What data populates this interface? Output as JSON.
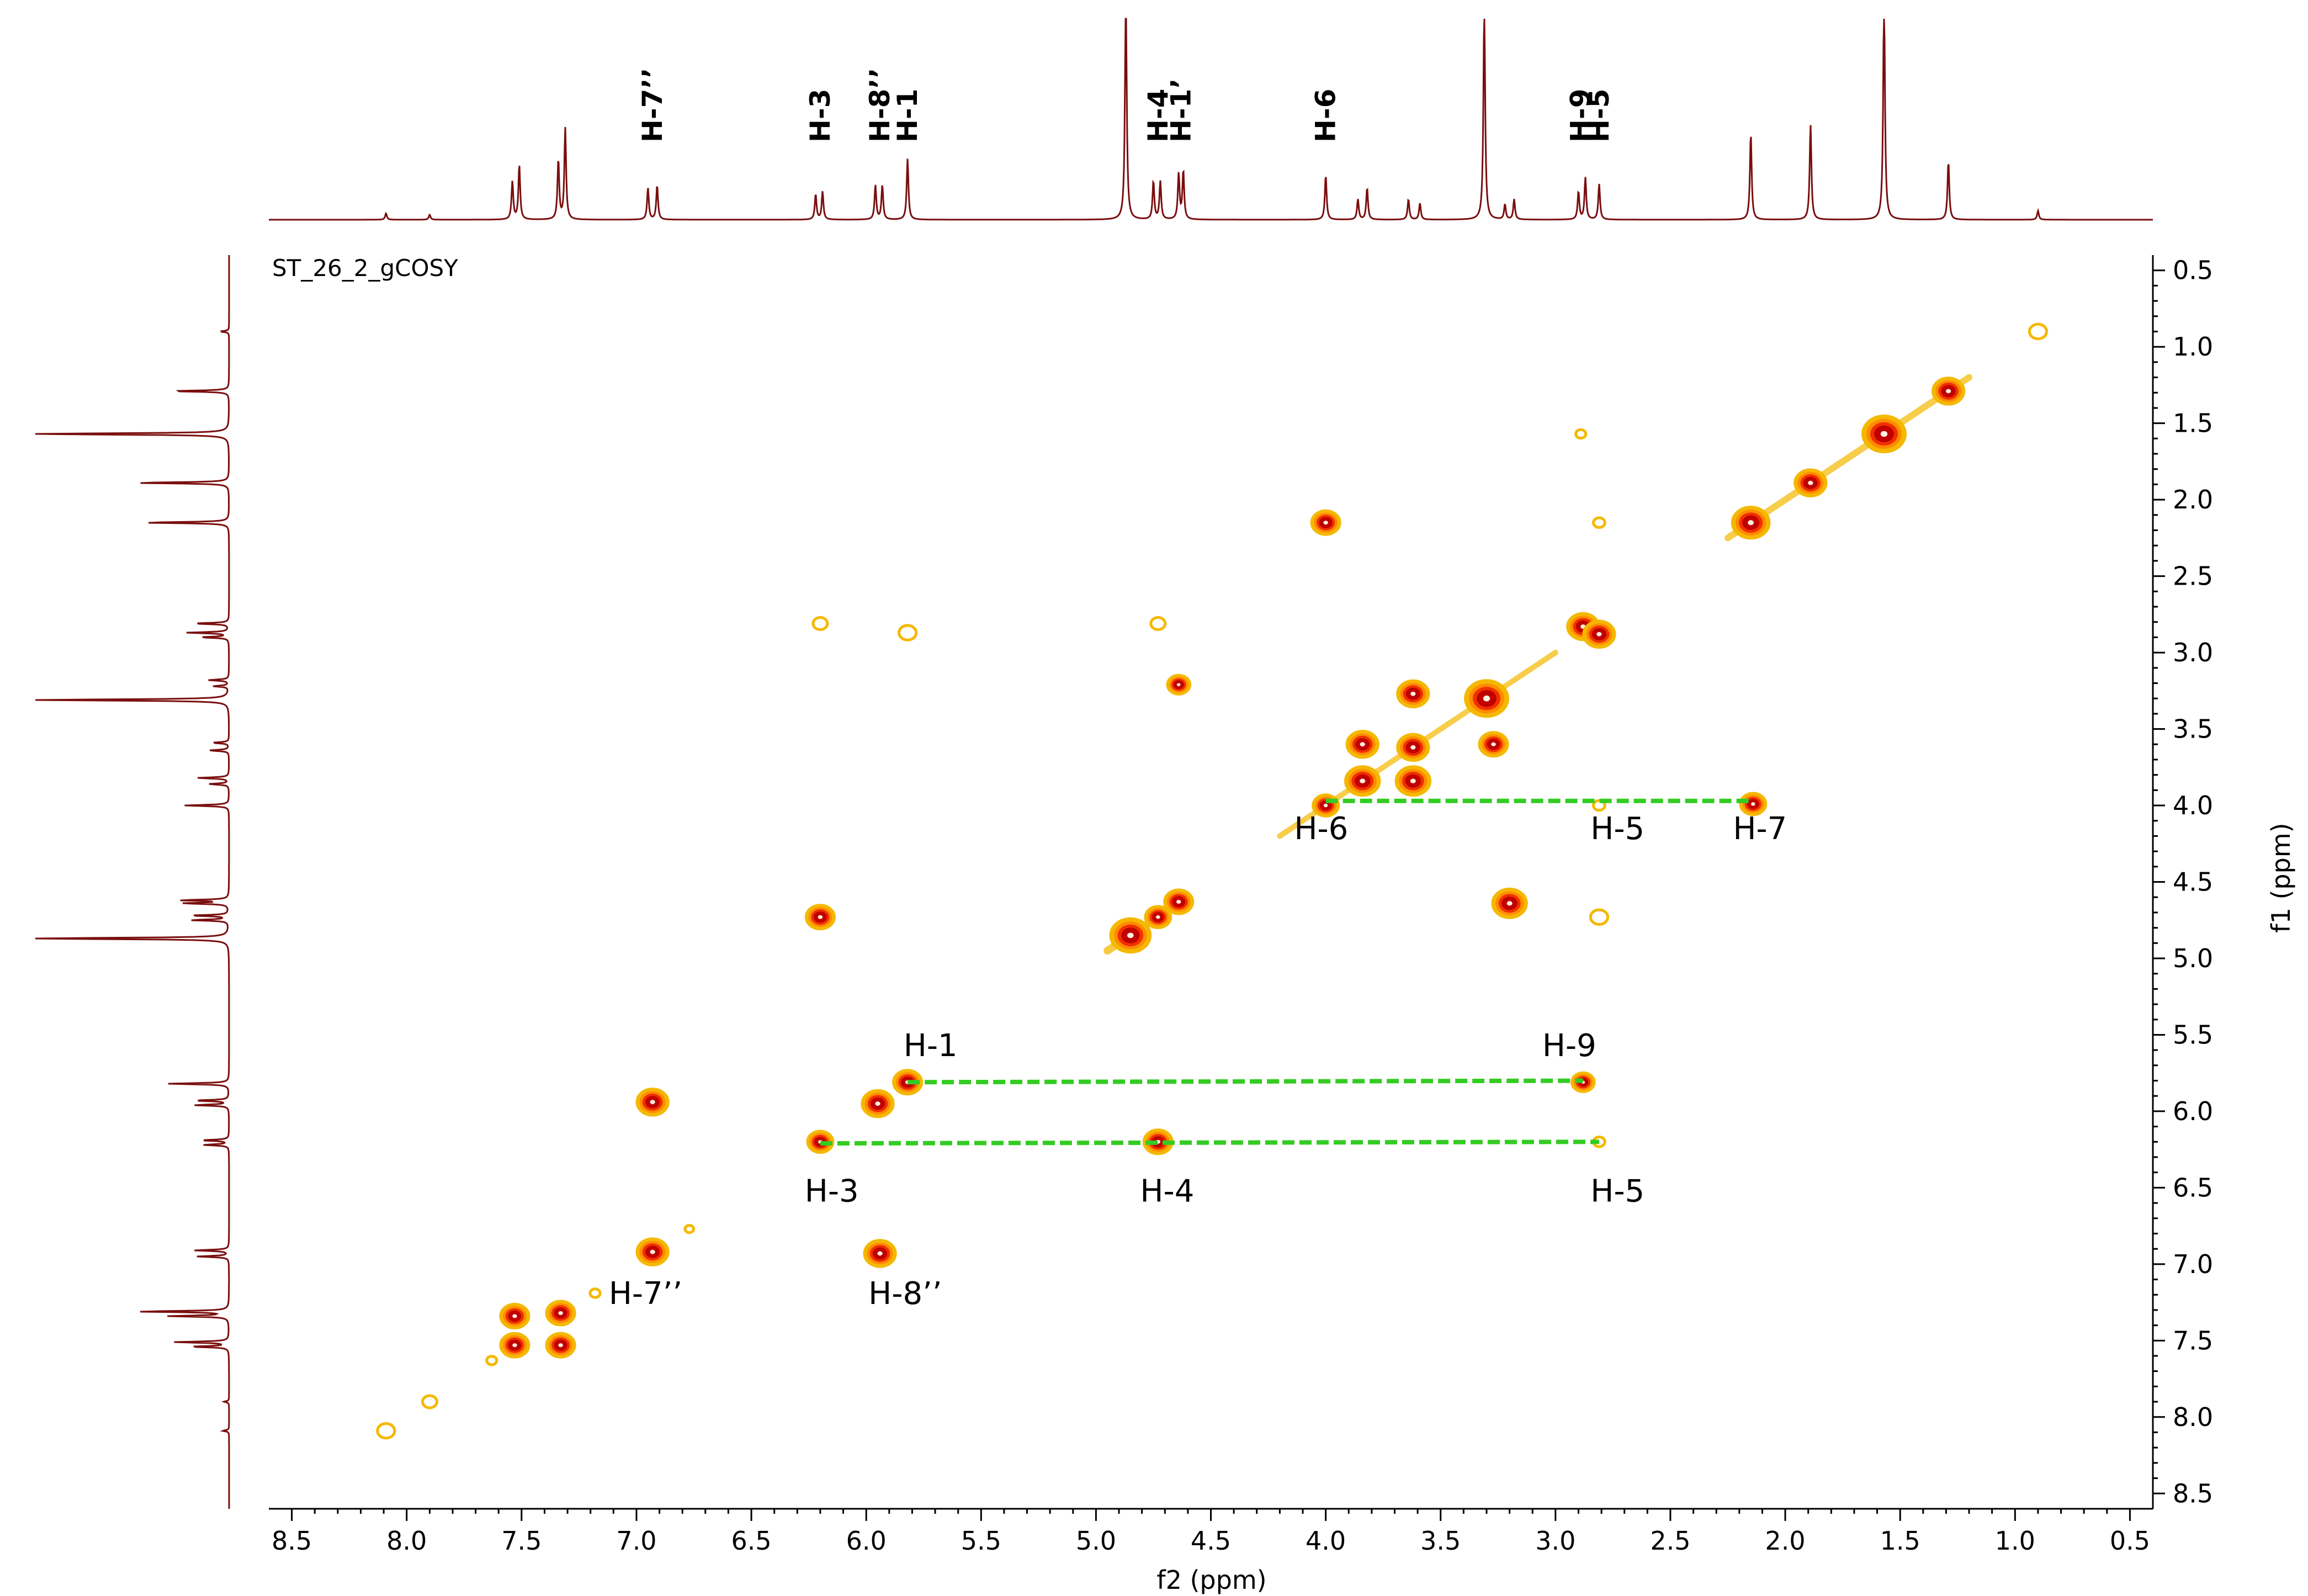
{
  "chart_data": {
    "type": "2D NMR contour (gCOSY)",
    "title": "ST_26_2_gCOSY",
    "xlabel": "f2 (ppm)",
    "ylabel": "f1 (ppm)",
    "xlim": [
      8.6,
      0.4
    ],
    "ylim": [
      0.4,
      8.6
    ],
    "x_ticks": [
      "8.5",
      "8.0",
      "7.5",
      "7.0",
      "6.5",
      "6.0",
      "5.5",
      "5.0",
      "4.5",
      "4.0",
      "3.5",
      "3.0",
      "2.5",
      "2.0",
      "1.5",
      "1.0",
      "0.5"
    ],
    "y_ticks": [
      "0.5",
      "1.0",
      "1.5",
      "2.0",
      "2.5",
      "3.0",
      "3.5",
      "4.0",
      "4.5",
      "5.0",
      "5.5",
      "6.0",
      "6.5",
      "7.0",
      "7.5",
      "8.0",
      "8.5"
    ],
    "spectrum_1d_peaks": [
      {
        "ppm": 8.09,
        "h": 0.05
      },
      {
        "ppm": 7.9,
        "h": 0.04
      },
      {
        "ppm": 7.54,
        "h": 0.3
      },
      {
        "ppm": 7.51,
        "h": 0.43
      },
      {
        "ppm": 7.34,
        "h": 0.47
      },
      {
        "ppm": 7.31,
        "h": 0.72
      },
      {
        "ppm": 6.95,
        "h": 0.25
      },
      {
        "ppm": 6.91,
        "h": 0.27
      },
      {
        "ppm": 6.22,
        "h": 0.2
      },
      {
        "ppm": 6.19,
        "h": 0.22
      },
      {
        "ppm": 5.96,
        "h": 0.27
      },
      {
        "ppm": 5.93,
        "h": 0.27
      },
      {
        "ppm": 5.82,
        "h": 0.48
      },
      {
        "ppm": 4.87,
        "h": 1.8
      },
      {
        "ppm": 4.75,
        "h": 0.3
      },
      {
        "ppm": 4.72,
        "h": 0.3
      },
      {
        "ppm": 4.64,
        "h": 0.36
      },
      {
        "ppm": 4.62,
        "h": 0.38
      },
      {
        "ppm": 4.0,
        "h": 0.35
      },
      {
        "ppm": 3.86,
        "h": 0.16
      },
      {
        "ppm": 3.82,
        "h": 0.25
      },
      {
        "ppm": 3.64,
        "h": 0.16
      },
      {
        "ppm": 3.59,
        "h": 0.13
      },
      {
        "ppm": 3.31,
        "h": 1.7
      },
      {
        "ppm": 3.22,
        "h": 0.12
      },
      {
        "ppm": 3.18,
        "h": 0.16
      },
      {
        "ppm": 2.9,
        "h": 0.22
      },
      {
        "ppm": 2.87,
        "h": 0.33
      },
      {
        "ppm": 2.81,
        "h": 0.28
      },
      {
        "ppm": 2.15,
        "h": 0.68
      },
      {
        "ppm": 1.89,
        "h": 0.75
      },
      {
        "ppm": 1.57,
        "h": 1.8
      },
      {
        "ppm": 1.29,
        "h": 0.46
      },
      {
        "ppm": 0.9,
        "h": 0.07
      }
    ],
    "cross_peaks": [
      {
        "x": 8.09,
        "y": 8.09,
        "s": 0.6
      },
      {
        "x": 7.9,
        "y": 7.9,
        "s": 0.5
      },
      {
        "x": 7.53,
        "y": 7.34,
        "s": 1
      },
      {
        "x": 7.53,
        "y": 7.53,
        "s": 1
      },
      {
        "x": 7.33,
        "y": 7.32,
        "s": 1
      },
      {
        "x": 7.33,
        "y": 7.53,
        "s": 1
      },
      {
        "x": 6.93,
        "y": 5.94,
        "s": 1.1
      },
      {
        "x": 6.93,
        "y": 6.92,
        "s": 1.1
      },
      {
        "x": 6.2,
        "y": 4.73,
        "s": 1
      },
      {
        "x": 6.2,
        "y": 6.2,
        "s": 0.9
      },
      {
        "x": 6.2,
        "y": 2.81,
        "s": 0.5
      },
      {
        "x": 5.95,
        "y": 5.95,
        "s": 1.1
      },
      {
        "x": 5.94,
        "y": 6.93,
        "s": 1.1
      },
      {
        "x": 5.82,
        "y": 5.81,
        "s": 1
      },
      {
        "x": 5.82,
        "y": 2.87,
        "s": 0.6
      },
      {
        "x": 4.85,
        "y": 4.85,
        "s": 1.4
      },
      {
        "x": 4.73,
        "y": 4.73,
        "s": 0.9
      },
      {
        "x": 4.73,
        "y": 6.2,
        "s": 1
      },
      {
        "x": 4.73,
        "y": 2.81,
        "s": 0.5
      },
      {
        "x": 4.64,
        "y": 4.63,
        "s": 1
      },
      {
        "x": 4.64,
        "y": 3.21,
        "s": 0.8
      },
      {
        "x": 4.0,
        "y": 4.0,
        "s": 0.9
      },
      {
        "x": 4.0,
        "y": 2.15,
        "s": 1
      },
      {
        "x": 3.84,
        "y": 3.84,
        "s": 1.2
      },
      {
        "x": 3.84,
        "y": 3.6,
        "s": 1.1
      },
      {
        "x": 3.62,
        "y": 3.84,
        "s": 1.2
      },
      {
        "x": 3.62,
        "y": 3.62,
        "s": 1.1
      },
      {
        "x": 3.62,
        "y": 3.27,
        "s": 1.1
      },
      {
        "x": 3.3,
        "y": 3.3,
        "s": 1.5
      },
      {
        "x": 3.27,
        "y": 3.6,
        "s": 1
      },
      {
        "x": 3.2,
        "y": 4.64,
        "s": 1.2
      },
      {
        "x": 2.88,
        "y": 2.83,
        "s": 1.1
      },
      {
        "x": 2.88,
        "y": 5.81,
        "s": 0.8
      },
      {
        "x": 2.81,
        "y": 2.88,
        "s": 1.1
      },
      {
        "x": 2.81,
        "y": 4.73,
        "s": 0.6
      },
      {
        "x": 2.81,
        "y": 2.15,
        "s": 0.4
      },
      {
        "x": 2.81,
        "y": 4.0,
        "s": 0.4
      },
      {
        "x": 2.81,
        "y": 6.2,
        "s": 0.4
      },
      {
        "x": 2.15,
        "y": 2.15,
        "s": 1.3
      },
      {
        "x": 2.14,
        "y": 3.99,
        "s": 0.9
      },
      {
        "x": 1.89,
        "y": 1.89,
        "s": 1.1
      },
      {
        "x": 1.57,
        "y": 1.57,
        "s": 1.5
      },
      {
        "x": 1.29,
        "y": 1.29,
        "s": 1.1
      },
      {
        "x": 0.9,
        "y": 0.9,
        "s": 0.6
      },
      {
        "x": 2.89,
        "y": 1.57,
        "s": 0.35
      },
      {
        "x": 7.63,
        "y": 7.63,
        "s": 0.35
      },
      {
        "x": 7.18,
        "y": 7.19,
        "s": 0.35
      },
      {
        "x": 6.77,
        "y": 6.77,
        "s": 0.3
      }
    ],
    "correlation_lines": [
      {
        "from": {
          "x": 4.0,
          "y": 3.97
        },
        "to": {
          "x": 2.14,
          "y": 3.97
        }
      },
      {
        "from": {
          "x": 5.82,
          "y": 5.81
        },
        "to": {
          "x": 2.88,
          "y": 5.8
        }
      },
      {
        "from": {
          "x": 6.2,
          "y": 6.21
        },
        "to": {
          "x": 2.81,
          "y": 6.2
        }
      }
    ],
    "plot_labels": [
      {
        "text": "H-6",
        "x": 4.02,
        "y": 4.22
      },
      {
        "text": "H-5",
        "x": 2.73,
        "y": 4.22
      },
      {
        "text": "H-7",
        "x": 2.11,
        "y": 4.22
      },
      {
        "text": "H-1",
        "x": 5.72,
        "y": 5.64
      },
      {
        "text": "H-9",
        "x": 2.94,
        "y": 5.64
      },
      {
        "text": "H-3",
        "x": 6.15,
        "y": 6.59
      },
      {
        "text": "H-4",
        "x": 4.69,
        "y": 6.59
      },
      {
        "text": "H-5",
        "x": 2.73,
        "y": 6.59
      },
      {
        "text": "H-7’’",
        "x": 6.96,
        "y": 7.26
      },
      {
        "text": "H-8’’",
        "x": 5.83,
        "y": 7.26
      }
    ],
    "top_labels": [
      {
        "text": "H-7’’",
        "ppm": 6.93
      },
      {
        "text": "H-3",
        "ppm": 6.2
      },
      {
        "text": "H-8’’",
        "ppm": 5.94
      },
      {
        "text": "H-1",
        "ppm": 5.82
      },
      {
        "text": "H-4",
        "ppm": 4.73
      },
      {
        "text": "H-1’",
        "ppm": 4.63
      },
      {
        "text": "H-6",
        "ppm": 4.0
      },
      {
        "text": "H-9",
        "ppm": 2.89
      },
      {
        "text": "H-5",
        "ppm": 2.81
      }
    ]
  }
}
